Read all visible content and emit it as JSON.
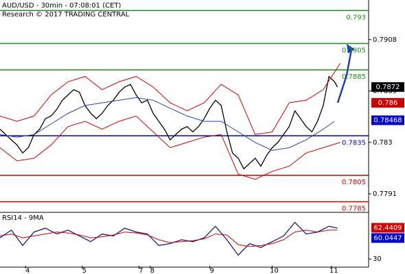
{
  "chart_data": [
    {
      "type": "line",
      "title": "AUD/USD - 30min - 07:08:01 (CET)",
      "subtitle": "Research © 2017 TRADING CENTRAL",
      "xlim": [
        0,
        130
      ],
      "ylim": [
        0.7778,
        0.7938
      ],
      "yticks": [
        0.7908,
        0.7869,
        0.783,
        0.7791
      ],
      "xticks": [
        {
          "value": 9,
          "label": "4"
        },
        {
          "value": 29,
          "label": "5"
        },
        {
          "value": 49,
          "label": "7"
        },
        {
          "value": 53,
          "label": "8"
        },
        {
          "value": 74,
          "label": "9"
        },
        {
          "value": 96,
          "label": "10"
        },
        {
          "value": 117,
          "label": "11"
        }
      ],
      "series": [
        {
          "color": "#000000",
          "x": [
            0,
            2,
            4,
            6,
            8,
            10,
            12,
            14,
            16,
            18,
            20,
            22,
            24,
            26,
            28,
            30,
            32,
            34,
            36,
            38,
            40,
            42,
            44,
            46,
            48,
            50,
            52,
            54,
            56,
            58,
            60,
            62,
            64,
            66,
            68,
            70,
            72,
            74,
            76,
            78,
            80,
            82,
            84,
            86,
            88,
            90,
            92,
            94,
            96,
            98,
            100,
            102,
            104,
            106,
            108,
            110,
            112,
            114,
            116,
            118,
            119
          ],
          "values": [
            0.784,
            0.7836,
            0.7832,
            0.7828,
            0.7822,
            0.7826,
            0.7836,
            0.784,
            0.7848,
            0.785,
            0.7855,
            0.7862,
            0.7866,
            0.787,
            0.7868,
            0.7858,
            0.7852,
            0.7848,
            0.7852,
            0.7858,
            0.7862,
            0.7868,
            0.7872,
            0.7874,
            0.7866,
            0.786,
            0.7862,
            0.7852,
            0.7846,
            0.784,
            0.7832,
            0.7836,
            0.784,
            0.7842,
            0.7838,
            0.7842,
            0.7848,
            0.7856,
            0.7862,
            0.7858,
            0.7838,
            0.7822,
            0.7818,
            0.781,
            0.7814,
            0.7818,
            0.7812,
            0.782,
            0.7826,
            0.783,
            0.7836,
            0.7842,
            0.7854,
            0.7848,
            0.7842,
            0.7838,
            0.7846,
            0.7858,
            0.788,
            0.7876,
            0.7872
          ]
        },
        {
          "color": "#cc0000",
          "x": [
            0,
            6,
            12,
            18,
            24,
            30,
            36,
            42,
            48,
            54,
            60,
            66,
            72,
            78,
            84,
            90,
            96,
            102,
            108,
            114,
            120
          ],
          "values": [
            0.785,
            0.7846,
            0.785,
            0.7866,
            0.7876,
            0.788,
            0.787,
            0.7876,
            0.788,
            0.7872,
            0.786,
            0.7854,
            0.786,
            0.7874,
            0.7866,
            0.7836,
            0.7838,
            0.786,
            0.7862,
            0.787,
            0.789
          ]
        },
        {
          "color": "#cc0000",
          "x": [
            0,
            6,
            12,
            18,
            24,
            30,
            36,
            42,
            48,
            54,
            60,
            66,
            72,
            78,
            84,
            90,
            96,
            102,
            108,
            114,
            120
          ],
          "values": [
            0.7826,
            0.7816,
            0.7818,
            0.7828,
            0.7842,
            0.7846,
            0.784,
            0.7846,
            0.785,
            0.7838,
            0.7826,
            0.783,
            0.7834,
            0.7836,
            0.7806,
            0.7802,
            0.7808,
            0.7812,
            0.7822,
            0.7826,
            0.783
          ]
        },
        {
          "color": "#2a3fb8",
          "x": [
            0,
            6,
            12,
            18,
            24,
            30,
            36,
            42,
            48,
            54,
            60,
            66,
            72,
            78,
            84,
            90,
            96,
            102,
            108,
            114,
            118
          ],
          "values": [
            0.7836,
            0.7834,
            0.7836,
            0.7844,
            0.7852,
            0.7858,
            0.786,
            0.7862,
            0.7864,
            0.7862,
            0.7856,
            0.785,
            0.7846,
            0.7846,
            0.7838,
            0.783,
            0.7824,
            0.7826,
            0.7832,
            0.784,
            0.7846
          ]
        }
      ],
      "levels": [
        {
          "value": 0.793,
          "color": "#1a8a1a"
        },
        {
          "value": 0.7905,
          "color": "#1a8a1a"
        },
        {
          "value": 0.7885,
          "color": "#1a8a1a"
        },
        {
          "value": 0.7835,
          "color": "#0000cc"
        },
        {
          "value": 0.7805,
          "color": "#cc0000"
        },
        {
          "value": 0.7785,
          "color": "#cc0000"
        }
      ],
      "price_tags": [
        {
          "value": 0.7872,
          "color": "#000000"
        },
        {
          "value": 0.786,
          "color": "#cc0000"
        },
        {
          "value": 0.78468,
          "color": "#0000cc"
        }
      ]
    },
    {
      "type": "line",
      "title": "RSI14 - 9MA",
      "xlim": [
        0,
        130
      ],
      "ylim": [
        23,
        77
      ],
      "yticks": [
        30
      ],
      "series": [
        {
          "color": "#1a1a80",
          "x": [
            0,
            4,
            8,
            12,
            16,
            20,
            24,
            28,
            32,
            36,
            40,
            44,
            48,
            52,
            56,
            60,
            64,
            68,
            72,
            76,
            80,
            84,
            88,
            92,
            96,
            100,
            104,
            108,
            112,
            116,
            119
          ],
          "values": [
            52,
            60,
            44,
            58,
            62,
            56,
            60,
            54,
            48,
            56,
            54,
            62,
            58,
            56,
            44,
            46,
            50,
            48,
            52,
            64,
            50,
            34,
            46,
            42,
            48,
            54,
            68,
            56,
            58,
            64,
            62
          ]
        },
        {
          "color": "#cc0000",
          "x": [
            0,
            4,
            8,
            12,
            16,
            20,
            24,
            28,
            32,
            36,
            40,
            44,
            48,
            52,
            56,
            60,
            64,
            68,
            72,
            76,
            80,
            84,
            88,
            92,
            96,
            100,
            104,
            108,
            112,
            116,
            119
          ],
          "values": [
            54,
            56,
            52,
            54,
            56,
            58,
            57,
            55,
            52,
            53,
            55,
            58,
            57,
            55,
            50,
            47,
            48,
            49,
            51,
            56,
            55,
            45,
            43,
            44,
            46,
            50,
            58,
            60,
            58,
            60,
            60
          ]
        }
      ],
      "price_tags": [
        {
          "value": 62.4409,
          "color": "#cc0000"
        },
        {
          "value": 60.0447,
          "color": "#0000cc"
        }
      ]
    }
  ]
}
